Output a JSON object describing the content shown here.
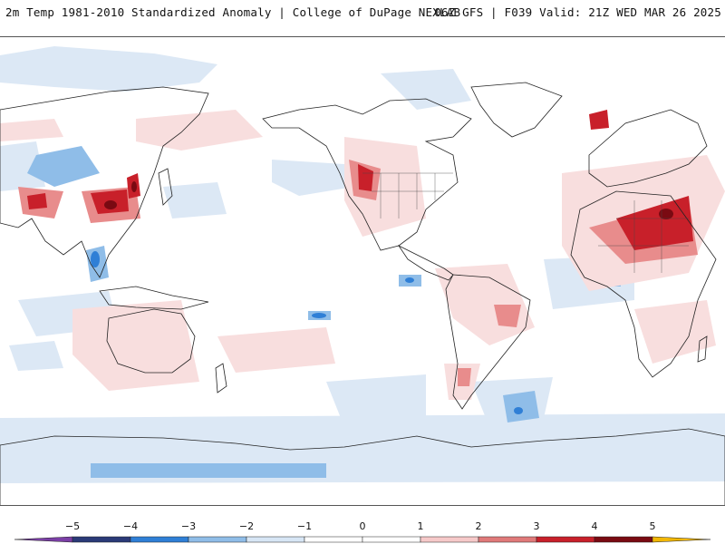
{
  "header": {
    "title": "2m Temp 1981-2010 Standardized Anomaly | College of DuPage NEXLAB",
    "run_info": "06Z GFS | F039 Valid: 21Z WED MAR 26 2025"
  },
  "legend": {
    "ticks": [
      "-5",
      "-4",
      "-3",
      "-2",
      "-1",
      "0",
      "1",
      "2",
      "3",
      "4",
      "5"
    ],
    "colors": [
      "#7b3fa6",
      "#2b3a78",
      "#2f7fd6",
      "#8fbde8",
      "#d7e6f5",
      "#ffffff",
      "#ffffff",
      "#f6c9c9",
      "#e07a7a",
      "#c8202a",
      "#7a0a12",
      "#f2b705"
    ]
  }
}
